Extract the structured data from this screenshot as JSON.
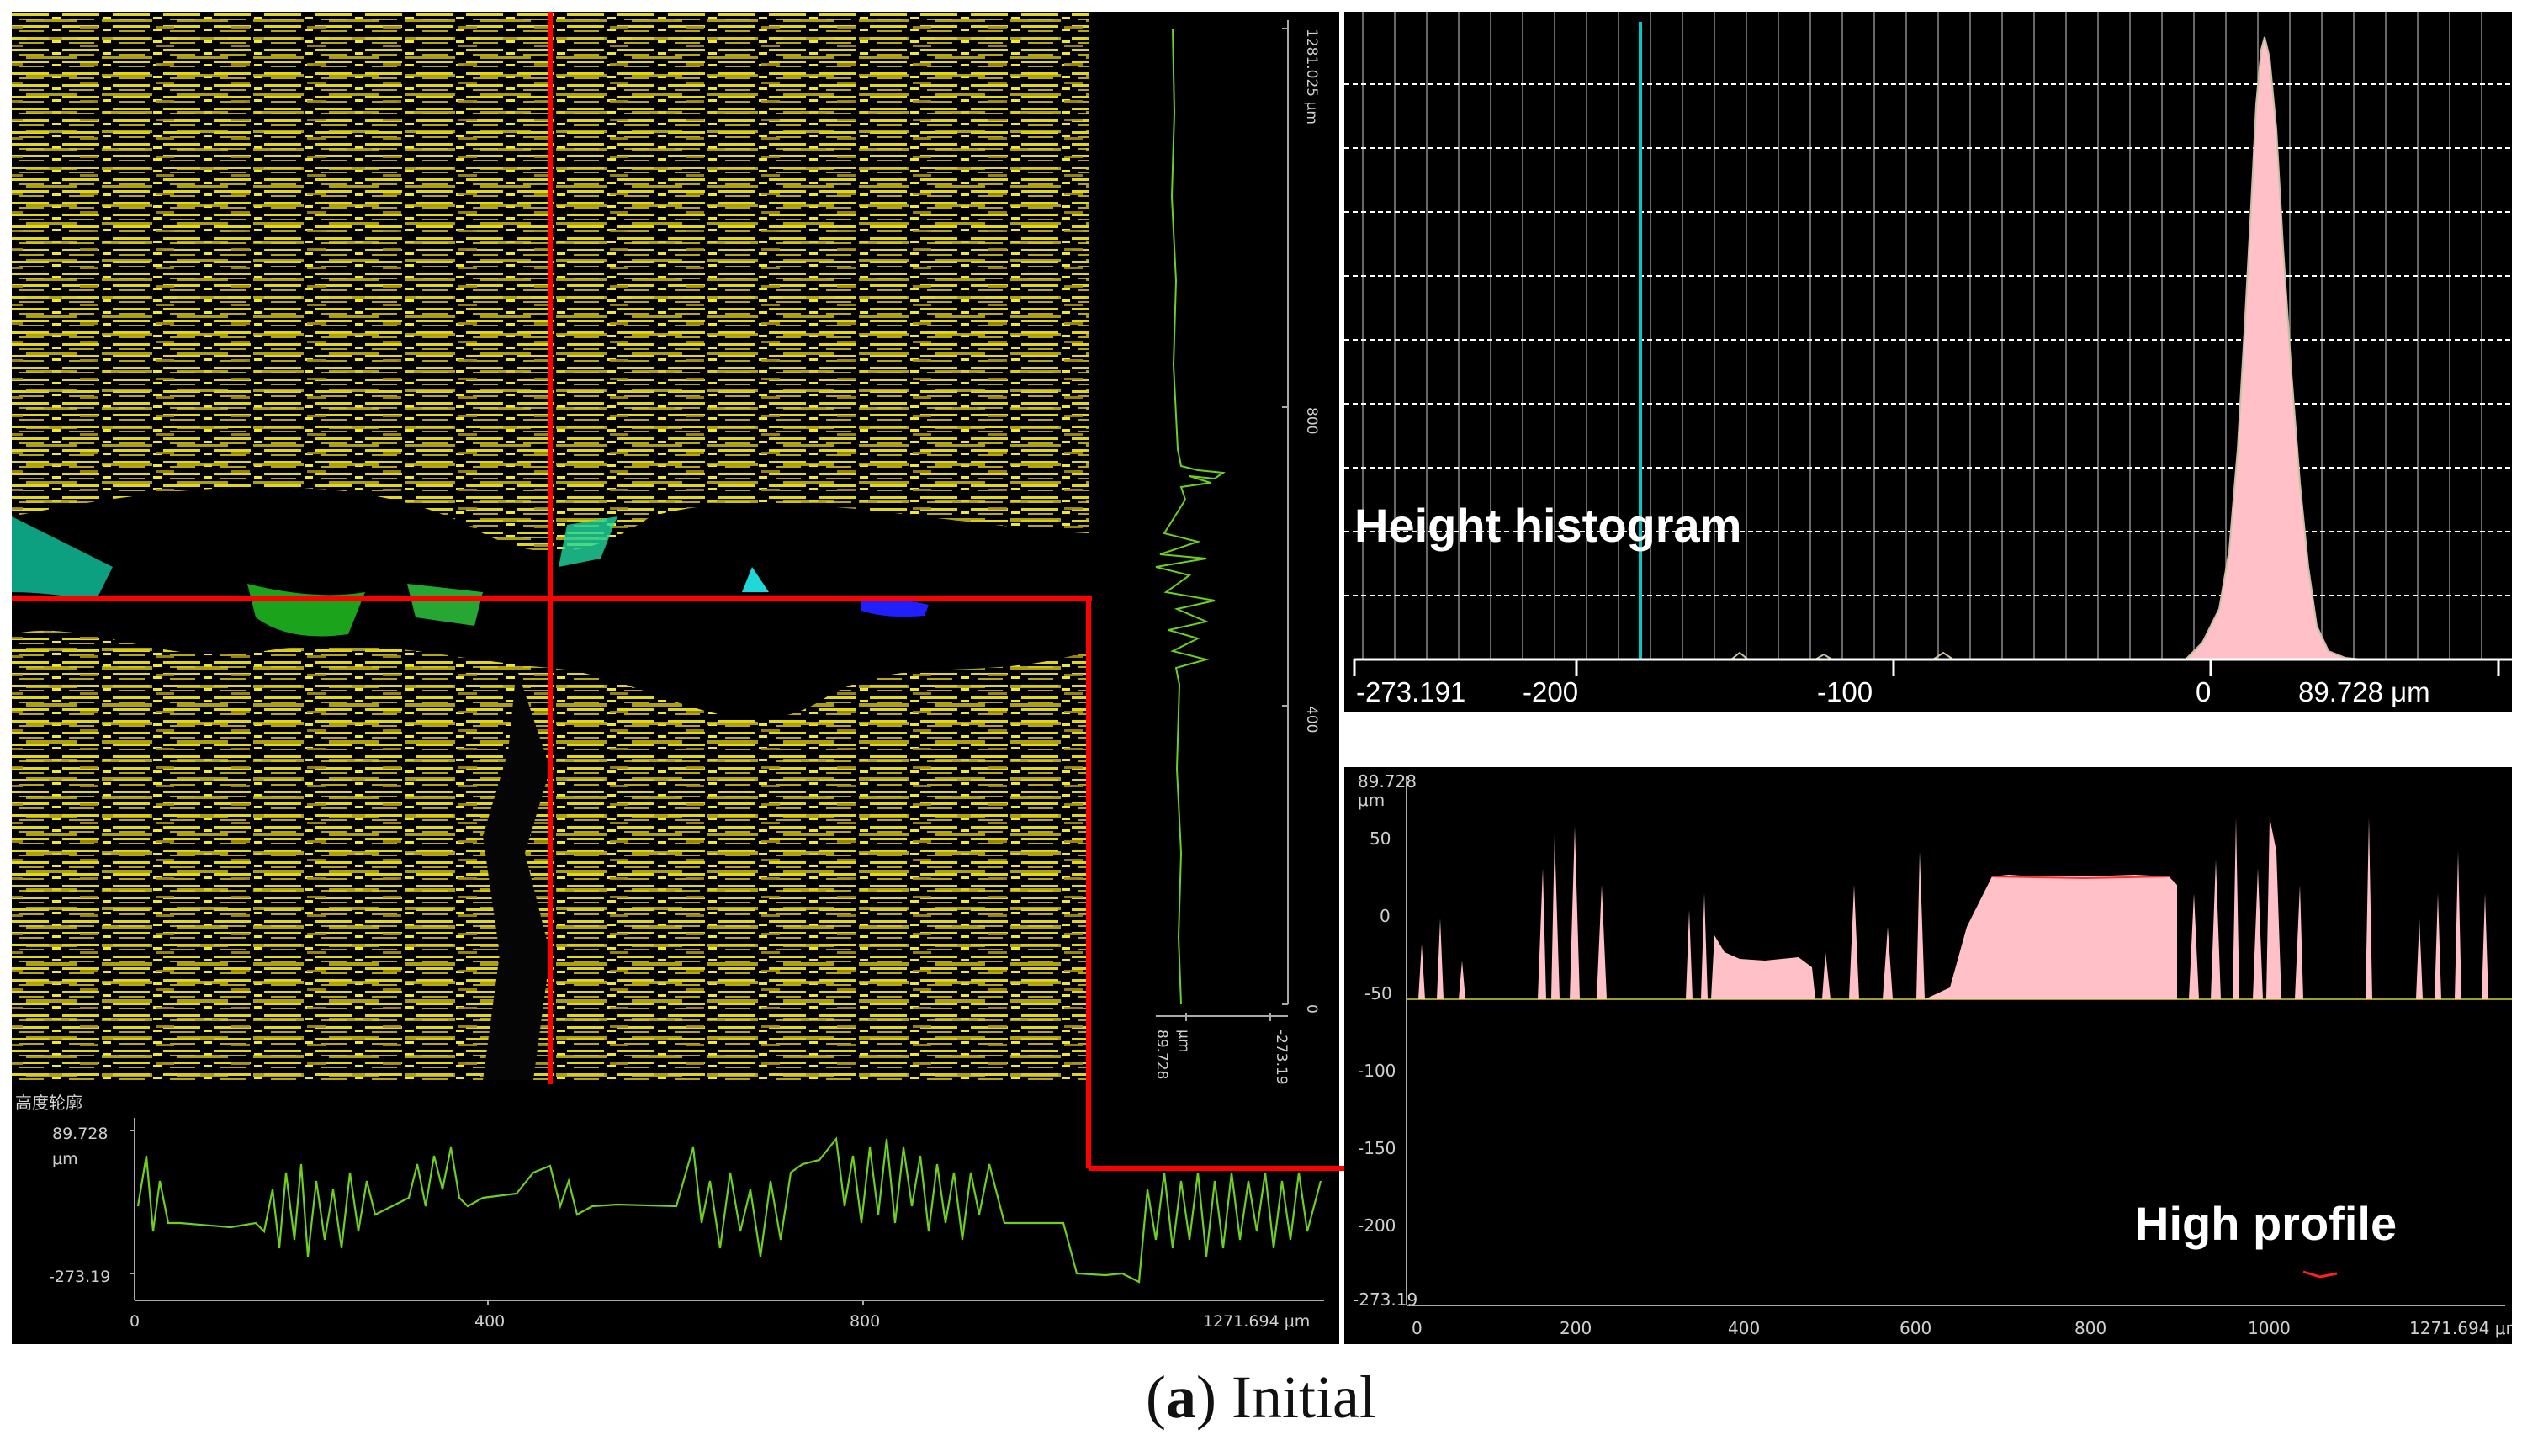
{
  "main_view": {
    "profile_box_title": "高度轮廓",
    "vertical_profile": {
      "ticks": [
        "1281.025 μm",
        "800",
        "400",
        "0"
      ],
      "range_labels": [
        "89.728",
        "μm",
        "-273.19"
      ]
    },
    "horizontal_profile": {
      "y_ticks": [
        "89.728",
        "μm",
        "-273.19"
      ],
      "x_ticks": [
        "0",
        "400",
        "800",
        "1271.694 μm"
      ]
    }
  },
  "histogram": {
    "label": "Height histogram",
    "x_ticks": [
      "-273.191",
      "-200",
      "-100",
      "0",
      "89.728 μm"
    ]
  },
  "profile": {
    "label": "High profile",
    "y_ticks": [
      "89.728",
      "μm",
      "50",
      "0",
      "-50",
      "-100",
      "-150",
      "-200",
      "-273.19"
    ],
    "x_ticks": [
      "0",
      "200",
      "400",
      "600",
      "800",
      "1000",
      "1271.694 μm"
    ]
  },
  "caption": {
    "letter": "a",
    "text": " Initial"
  },
  "colors": {
    "surface_yellow": "#d8d010",
    "crosshair": "#ff0000",
    "profile_line": "#6fcf20",
    "histogram_fill": "#ffc0c8",
    "histogram_marker": "#00c8c8"
  }
}
